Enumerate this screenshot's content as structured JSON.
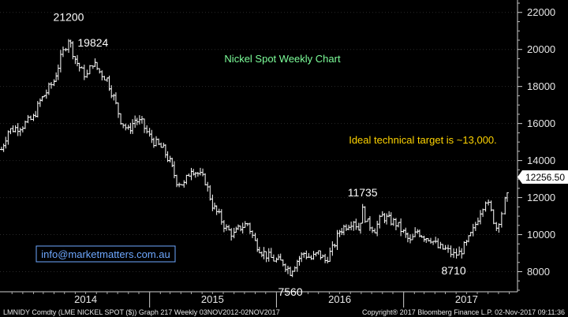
{
  "chart_data": {
    "type": "bar",
    "subtype": "ohlc-weekly",
    "title": "Nickel Spot Weekly Chart",
    "title_color": "#7dff9a",
    "annotation": "Ideal technical target is ~13,000.",
    "annotation_color": "#ffd400",
    "watermark": "info@marketmatters.com.au",
    "watermark_color": "#6ea8ff",
    "bar_color": "#ffffff",
    "background_color": "#000000",
    "grid_color": "#2a2a2a",
    "last_price_label": "12256.50",
    "ylim": [
      7000,
      22500
    ],
    "yticks": [
      8000,
      10000,
      12000,
      14000,
      16000,
      18000,
      20000,
      22000
    ],
    "ytick_labels": [
      "8000",
      "10000",
      "12000",
      "14000",
      "16000",
      "18000",
      "20000",
      "22000"
    ],
    "xlim": [
      "2013-11-01",
      "2017-11-02"
    ],
    "year_labels": [
      {
        "label": "2014",
        "date": "2014-07-01"
      },
      {
        "label": "2015",
        "date": "2015-07-01"
      },
      {
        "label": "2016",
        "date": "2016-07-01"
      },
      {
        "label": "2017",
        "date": "2017-07-01"
      }
    ],
    "year_boundaries": [
      "2015-01-01",
      "2016-01-01",
      "2017-01-01"
    ],
    "callouts": [
      {
        "label": "21200",
        "date": "2014-05-13",
        "value": 21200,
        "position": "above"
      },
      {
        "label": "19824",
        "date": "2014-07-22",
        "value": 19824,
        "position": "above"
      },
      {
        "label": "7560",
        "date": "2016-02-10",
        "value": 7560,
        "position": "below"
      },
      {
        "label": "11735",
        "date": "2016-09-05",
        "value": 11735,
        "position": "above"
      },
      {
        "label": "8710",
        "date": "2017-05-25",
        "value": 8710,
        "position": "below"
      }
    ],
    "series": [
      {
        "values": [
          [
            "2013-11-01",
            14600
          ],
          [
            "2013-11-20",
            15600
          ],
          [
            "2014-01-01",
            15900
          ],
          [
            "2014-02-01",
            16300
          ],
          [
            "2014-02-20",
            17200
          ],
          [
            "2014-03-10",
            17700
          ],
          [
            "2014-04-01",
            18300
          ],
          [
            "2014-04-20",
            19500
          ],
          [
            "2014-05-13",
            20600
          ],
          [
            "2014-06-01",
            19500
          ],
          [
            "2014-06-20",
            18800
          ],
          [
            "2014-07-05",
            18600
          ],
          [
            "2014-07-22",
            19300
          ],
          [
            "2014-08-10",
            18800
          ],
          [
            "2014-09-01",
            18400
          ],
          [
            "2014-09-20",
            17400
          ],
          [
            "2014-10-10",
            16200
          ],
          [
            "2014-11-01",
            15600
          ],
          [
            "2014-11-20",
            16200
          ],
          [
            "2014-12-10",
            16000
          ],
          [
            "2015-01-01",
            15300
          ],
          [
            "2015-01-20",
            14900
          ],
          [
            "2015-02-10",
            14600
          ],
          [
            "2015-03-01",
            13900
          ],
          [
            "2015-03-20",
            12900
          ],
          [
            "2015-04-10",
            12700
          ],
          [
            "2015-05-01",
            13600
          ],
          [
            "2015-05-20",
            13300
          ],
          [
            "2015-06-10",
            12900
          ],
          [
            "2015-07-01",
            11600
          ],
          [
            "2015-07-20",
            11000
          ],
          [
            "2015-08-10",
            10300
          ],
          [
            "2015-09-01",
            10000
          ],
          [
            "2015-09-20",
            10400
          ],
          [
            "2015-10-10",
            10600
          ],
          [
            "2015-11-01",
            9600
          ],
          [
            "2015-11-20",
            9100
          ],
          [
            "2015-12-10",
            8800
          ],
          [
            "2016-01-01",
            8600
          ],
          [
            "2016-01-20",
            8500
          ],
          [
            "2016-02-10",
            8000
          ],
          [
            "2016-03-01",
            8600
          ],
          [
            "2016-03-20",
            9000
          ],
          [
            "2016-04-10",
            8700
          ],
          [
            "2016-05-01",
            9000
          ],
          [
            "2016-05-20",
            8600
          ],
          [
            "2016-06-10",
            9200
          ],
          [
            "2016-07-01",
            10200
          ],
          [
            "2016-07-20",
            10500
          ],
          [
            "2016-08-10",
            10800
          ],
          [
            "2016-08-25",
            10300
          ],
          [
            "2016-09-05",
            11300
          ],
          [
            "2016-09-20",
            10600
          ],
          [
            "2016-10-10",
            10300
          ],
          [
            "2016-11-01",
            11000
          ],
          [
            "2016-11-20",
            10800
          ],
          [
            "2016-12-10",
            10600
          ],
          [
            "2017-01-01",
            10100
          ],
          [
            "2017-01-20",
            9600
          ],
          [
            "2017-02-10",
            10200
          ],
          [
            "2017-03-01",
            9900
          ],
          [
            "2017-03-20",
            9800
          ],
          [
            "2017-04-10",
            9300
          ],
          [
            "2017-05-01",
            9200
          ],
          [
            "2017-05-25",
            8900
          ],
          [
            "2017-06-10",
            9000
          ],
          [
            "2017-07-01",
            9500
          ],
          [
            "2017-07-20",
            10200
          ],
          [
            "2017-08-10",
            11300
          ],
          [
            "2017-08-25",
            11900
          ],
          [
            "2017-09-10",
            11200
          ],
          [
            "2017-09-25",
            10400
          ],
          [
            "2017-10-10",
            11200
          ],
          [
            "2017-10-20",
            11800
          ],
          [
            "2017-11-02",
            12256
          ]
        ]
      }
    ]
  },
  "footer": {
    "left": "LMNIDY Comdty (LME NICKEL  SPOT ($)) Graph 217  Weekly 03NOV2012-02NOV2017",
    "right": "Copyright® 2017 Bloomberg Finance L.P.     02-Nov-2017 09:11:36"
  }
}
